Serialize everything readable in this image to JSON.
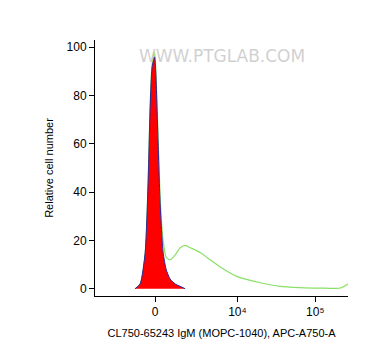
{
  "chart_data": {
    "type": "line",
    "x_label": "CL750-65243 IgM (MOPC-1040), APC-A750-A",
    "y_label": "Relative cell number",
    "annotations": [
      "WWW.PTGLAB.COM"
    ],
    "xlim": [
      -5100,
      263000
    ],
    "xticks": [
      0,
      {
        "value": 10000,
        "label": "10⁴"
      },
      {
        "value": 100000,
        "label": "10⁵"
      }
    ],
    "ylim": [
      -3,
      103
    ],
    "yticks": [
      0,
      20,
      40,
      60,
      80,
      100
    ],
    "grid": false,
    "series": [
      {
        "type": "line",
        "color": "#88e066",
        "x": [
          -1117,
          -815,
          -533,
          -370,
          -264,
          -158,
          -30,
          30,
          158,
          264,
          424,
          590,
          815,
          1117,
          1438,
          1793,
          2188,
          3127,
          4346,
          5950,
          10000,
          19780,
          35640,
          64300,
          116200,
          209600,
          263000
        ],
        "values": [
          0,
          2,
          14,
          44,
          76,
          93,
          98,
          92,
          62,
          38,
          20,
          13,
          12,
          14,
          17,
          18,
          17,
          15,
          12,
          9,
          5,
          2.5,
          1,
          0.5,
          0.3,
          0.3,
          2
        ]
      },
      {
        "type": "area",
        "color": "#ff0000",
        "x": [
          -1117,
          -815,
          -533,
          -370,
          -264,
          -158,
          -30,
          30,
          158,
          264,
          424,
          590,
          815,
          1117,
          1438,
          1793
        ],
        "values": [
          0,
          2,
          15,
          45,
          75,
          92,
          96,
          90,
          60,
          35,
          15,
          8,
          4,
          2,
          1,
          0
        ]
      }
    ]
  }
}
